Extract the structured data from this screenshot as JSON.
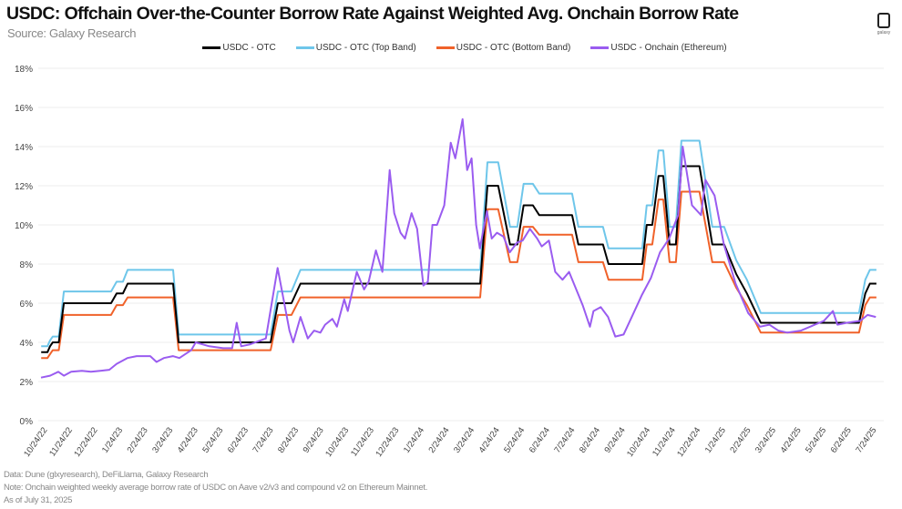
{
  "header": {
    "title": "USDC: Offchain Over-the-Counter Borrow Rate Against Weighted Avg. Onchain Borrow Rate",
    "subtitle": "Source: Galaxy Research",
    "logo_text": "galaxy"
  },
  "footer": {
    "data": "Data: Dune (glxyresearch), DeFiLlama, Galaxy Research",
    "note": "Note: Onchain weighted weekly average borrow rate of USDC on Aave v2/v3 and compound v2 on Ethereum Mainnet.",
    "asof": "As of July 31, 2025"
  },
  "chart_data": {
    "type": "line",
    "title": "USDC: Offchain Over-the-Counter Borrow Rate Against Weighted Avg. Onchain Borrow Rate",
    "xlabel": "",
    "ylabel": "",
    "x_unit": "months since 10/24/22",
    "xlim": [
      0,
      33
    ],
    "ylim": [
      0,
      18
    ],
    "yticks": [
      0,
      2,
      4,
      6,
      8,
      10,
      12,
      14,
      16,
      18
    ],
    "ytick_labels": [
      "0%",
      "2%",
      "4%",
      "6%",
      "8%",
      "10%",
      "12%",
      "14%",
      "16%",
      "18%"
    ],
    "xtick_labels": [
      "10/24/22",
      "11/24/22",
      "12/24/22",
      "1/24/23",
      "2/24/23",
      "3/24/23",
      "4/24/23",
      "5/24/23",
      "6/24/23",
      "7/24/23",
      "8/24/23",
      "9/24/23",
      "10/24/23",
      "11/24/23",
      "12/24/23",
      "1/24/24",
      "2/24/24",
      "3/24/24",
      "4/24/24",
      "5/24/24",
      "6/24/24",
      "7/24/24",
      "8/24/24",
      "9/24/24",
      "10/24/24",
      "11/24/24",
      "12/24/24",
      "1/24/25",
      "2/24/25",
      "3/24/25",
      "4/24/25",
      "5/24/25",
      "6/24/25",
      "7/24/25"
    ],
    "grid": true,
    "legend_position": "top-center",
    "band_x": [
      -0.1,
      0.15,
      0.25,
      0.36,
      0.6,
      0.8,
      2.68,
      2.9,
      3.15,
      3.34,
      5.15,
      5.37,
      9.03,
      9.32,
      9.86,
      10.22,
      17.37,
      17.66,
      18.09,
      18.56,
      18.85,
      19.1,
      19.47,
      19.72,
      21.03,
      21.28,
      22.26,
      22.48,
      23.82,
      24.0,
      24.22,
      24.47,
      24.66,
      24.91,
      25.16,
      25.38,
      26.1,
      26.61,
      27.08,
      27.56,
      27.99,
      28.54,
      32.45,
      32.7,
      32.88,
      33.14
    ],
    "series": [
      {
        "name": "USDC - OTC",
        "color": "#000000",
        "values": [
          3.5,
          3.5,
          3.8,
          4.0,
          4.0,
          6.0,
          6.0,
          6.5,
          6.5,
          7.0,
          7.0,
          4.0,
          4.0,
          6.0,
          6.0,
          7.0,
          7.0,
          12.0,
          12.0,
          9.0,
          9.0,
          11.0,
          11.0,
          10.5,
          10.5,
          9.0,
          9.0,
          8.0,
          8.0,
          10.0,
          10.0,
          12.5,
          12.5,
          9.0,
          9.0,
          13.0,
          13.0,
          9.0,
          9.0,
          7.5,
          6.5,
          5.0,
          5.0,
          6.5,
          7.0,
          7.0
        ]
      },
      {
        "name": "USDC - OTC (Top Band)",
        "color": "#6ec6ea",
        "values": [
          3.8,
          3.8,
          4.1,
          4.3,
          4.3,
          6.6,
          6.6,
          7.1,
          7.1,
          7.7,
          7.7,
          4.4,
          4.4,
          6.6,
          6.6,
          7.7,
          7.7,
          13.2,
          13.2,
          9.9,
          9.9,
          12.1,
          12.1,
          11.6,
          11.6,
          9.9,
          9.9,
          8.8,
          8.8,
          11.0,
          11.0,
          13.8,
          13.8,
          9.9,
          9.9,
          14.3,
          14.3,
          9.9,
          9.9,
          8.2,
          7.2,
          5.5,
          5.5,
          7.2,
          7.7,
          7.7
        ]
      },
      {
        "name": "USDC - OTC (Bottom Band)",
        "color": "#f0622a",
        "values": [
          3.2,
          3.2,
          3.4,
          3.6,
          3.6,
          5.4,
          5.4,
          5.9,
          5.9,
          6.3,
          6.3,
          3.6,
          3.6,
          5.4,
          5.4,
          6.3,
          6.3,
          10.8,
          10.8,
          8.1,
          8.1,
          9.9,
          9.9,
          9.5,
          9.5,
          8.1,
          8.1,
          7.2,
          7.2,
          9.0,
          9.0,
          11.3,
          11.3,
          8.1,
          8.1,
          11.7,
          11.7,
          8.1,
          8.1,
          6.8,
          5.9,
          4.5,
          4.5,
          5.9,
          6.3,
          6.3
        ]
      },
      {
        "name": "USDC - Onchain (Ethereum)",
        "color": "#9a5cf0",
        "x": [
          -0.11,
          0.25,
          0.58,
          0.8,
          1.09,
          1.52,
          1.88,
          2.25,
          2.61,
          2.9,
          3.33,
          3.7,
          4.06,
          4.24,
          4.49,
          4.78,
          5.14,
          5.4,
          5.87,
          6.05,
          6.59,
          7.14,
          7.5,
          7.68,
          7.86,
          8.22,
          8.84,
          9.31,
          9.78,
          9.93,
          10.22,
          10.51,
          10.76,
          11.01,
          11.2,
          11.49,
          11.67,
          11.96,
          12.1,
          12.46,
          12.75,
          12.93,
          13.22,
          13.48,
          13.77,
          13.95,
          14.2,
          14.38,
          14.64,
          14.86,
          15.11,
          15.29,
          15.47,
          15.65,
          15.94,
          16.2,
          16.38,
          16.67,
          16.85,
          17.03,
          17.21,
          17.36,
          17.64,
          17.83,
          18.04,
          18.3,
          18.55,
          18.84,
          19.06,
          19.35,
          19.64,
          19.82,
          20.11,
          20.36,
          20.65,
          20.91,
          21.45,
          21.74,
          21.88,
          22.17,
          22.46,
          22.75,
          23.08,
          23.44,
          23.8,
          24.17,
          24.53,
          24.89,
          25.25,
          25.43,
          25.8,
          26.16,
          26.34,
          26.7,
          27.07,
          27.54,
          28.04,
          28.51,
          28.88,
          29.24,
          29.6,
          30.14,
          30.69,
          31.05,
          31.41,
          31.59,
          31.96,
          32.5,
          32.79,
          33.12
        ],
        "values": [
          2.2,
          2.3,
          2.5,
          2.3,
          2.5,
          2.55,
          2.5,
          2.55,
          2.6,
          2.9,
          3.2,
          3.3,
          3.3,
          3.3,
          3.0,
          3.2,
          3.3,
          3.2,
          3.6,
          4.0,
          3.8,
          3.7,
          3.7,
          5.0,
          3.8,
          3.9,
          4.2,
          7.8,
          4.6,
          4.0,
          5.3,
          4.2,
          4.6,
          4.5,
          4.9,
          5.2,
          4.8,
          6.2,
          5.6,
          7.6,
          6.7,
          7.1,
          8.7,
          7.6,
          12.8,
          10.6,
          9.6,
          9.3,
          10.6,
          9.8,
          6.9,
          7.1,
          10.0,
          10.0,
          11.0,
          14.2,
          13.4,
          15.4,
          12.8,
          13.4,
          10.0,
          8.8,
          10.7,
          9.3,
          9.6,
          9.4,
          8.6,
          9.1,
          9.2,
          9.8,
          9.3,
          8.9,
          9.2,
          7.6,
          7.2,
          7.6,
          5.9,
          4.8,
          5.6,
          5.8,
          5.3,
          4.3,
          4.4,
          5.4,
          6.4,
          7.3,
          8.6,
          9.3,
          10.5,
          14.0,
          11.0,
          10.5,
          12.3,
          11.5,
          9.0,
          7.0,
          5.5,
          4.8,
          4.9,
          4.6,
          4.5,
          4.6,
          4.9,
          5.1,
          5.6,
          4.9,
          5.0,
          5.1,
          5.4,
          5.3
        ]
      }
    ]
  }
}
